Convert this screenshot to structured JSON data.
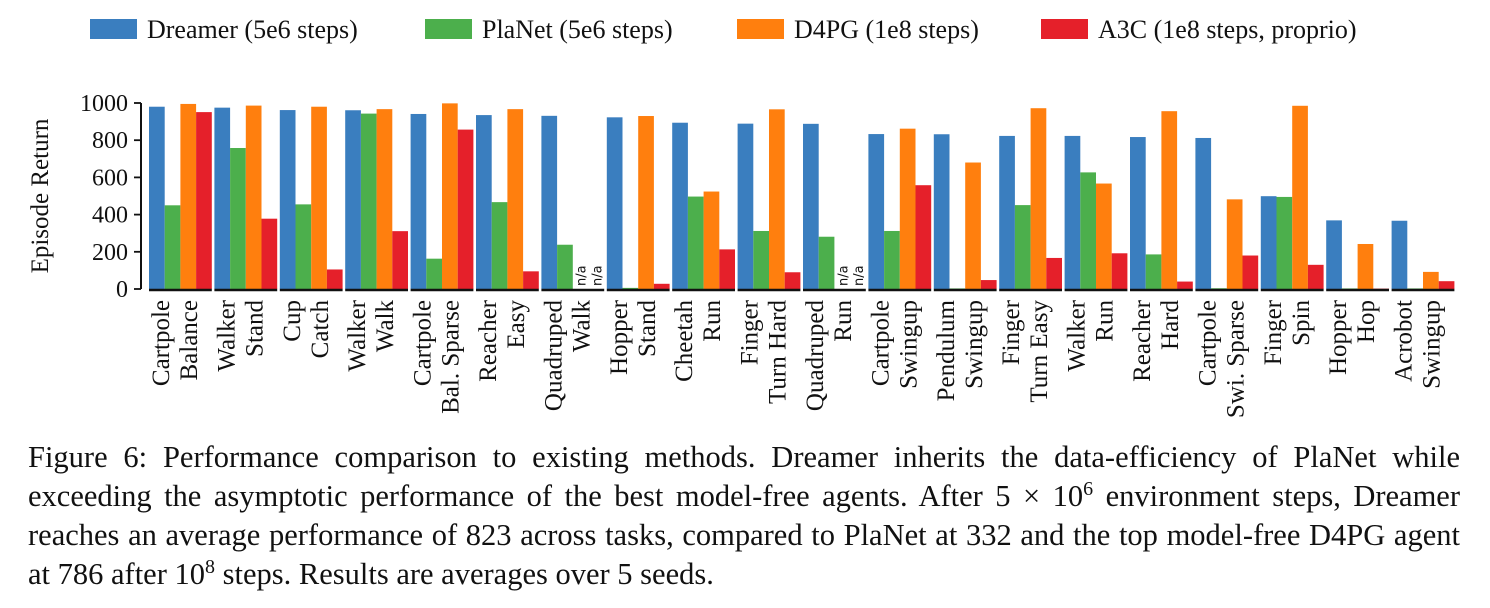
{
  "chart_data": {
    "type": "bar",
    "ylabel": "Episode Return",
    "ylim": [
      0,
      1000
    ],
    "yticks": [
      0,
      200,
      400,
      600,
      800,
      1000
    ],
    "legend_position": "top",
    "series": [
      {
        "name": "Dreamer (5e6 steps)",
        "color": "#3a7ebf",
        "values": [
          980,
          975,
          962,
          961,
          941,
          935,
          931,
          923,
          894,
          889,
          888,
          833,
          832,
          823,
          823,
          817,
          812,
          499,
          369,
          367
        ]
      },
      {
        "name": "PlaNet (5e6 steps)",
        "color": "#4caf4c",
        "values": [
          450,
          758,
          455,
          943,
          163,
          467,
          238,
          6,
          497,
          312,
          281,
          312,
          3,
          451,
          627,
          186,
          4,
          495,
          3,
          3
        ]
      },
      {
        "name": "D4PG (1e8 steps)",
        "color": "#ff7f0e",
        "values": [
          995,
          986,
          980,
          967,
          998,
          967,
          null,
          930,
          524,
          966,
          null,
          862,
          680,
          972,
          567,
          956,
          482,
          985,
          242,
          92
        ]
      },
      {
        "name": "A3C (1e8 steps, proprio)",
        "color": "#e5202a",
        "values": [
          951,
          378,
          105,
          311,
          857,
          95,
          null,
          28,
          213,
          90,
          null,
          558,
          48,
          167,
          192,
          40,
          180,
          130,
          2,
          42
        ]
      }
    ],
    "categories": [
      [
        "Cartpole",
        "Balance"
      ],
      [
        "Walker",
        "Stand"
      ],
      [
        "Cup",
        "Catch"
      ],
      [
        "Walker",
        "Walk"
      ],
      [
        "Cartpole",
        "Bal. Sparse"
      ],
      [
        "Reacher",
        "Easy"
      ],
      [
        "Quadruped",
        "Walk"
      ],
      [
        "Hopper",
        "Stand"
      ],
      [
        "Cheetah",
        "Run"
      ],
      [
        "Finger",
        "Turn  Hard"
      ],
      [
        "Quadruped",
        "Run"
      ],
      [
        "Cartpole",
        "Swingup"
      ],
      [
        "Pendulum",
        "Swingup"
      ],
      [
        "Finger",
        "Turn  Easy"
      ],
      [
        "Walker",
        "Run"
      ],
      [
        "Reacher",
        "Hard"
      ],
      [
        "Cartpole",
        "Swi. Sparse"
      ],
      [
        "Finger",
        "Spin"
      ],
      [
        "Hopper",
        "Hop"
      ],
      [
        "Acrobot",
        "Swingup"
      ]
    ],
    "na_label": "n/a"
  },
  "caption": {
    "label": "Figure 6:",
    "text1": "Performance comparison to existing methods. Dreamer inherits the data-efficiency of PlaNet while exceeding the asymptotic performance of the best model-free agents. After 5 × 10",
    "sup1": "6",
    "text2": " environment steps, Dreamer reaches an average performance of 823 across tasks, compared to PlaNet at 332 and the top model-free D4PG agent at 786 after 10",
    "sup2": "8",
    "text3": " steps. Results are averages over 5 seeds."
  }
}
